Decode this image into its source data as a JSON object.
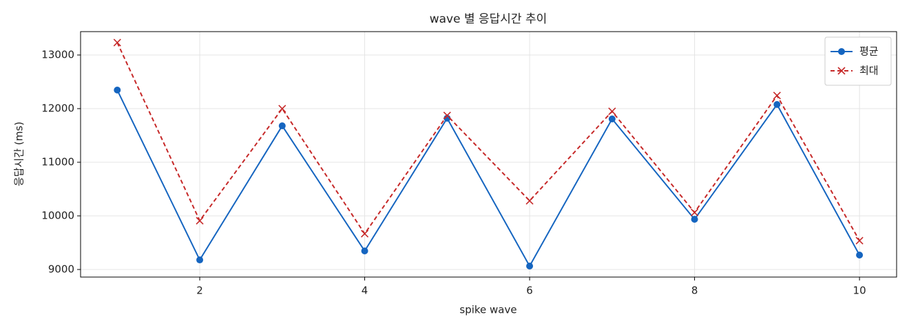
{
  "chart_data": {
    "type": "line",
    "title": "wave 별 응답시간 추이",
    "x_label": "spike wave",
    "y_label": "응답시간 (ms)",
    "x": [
      1,
      2,
      3,
      4,
      5,
      6,
      7,
      8,
      9,
      10
    ],
    "series": [
      {
        "name": "평균",
        "color": "#1565c0",
        "marker": "circle",
        "dashed": false,
        "values": [
          12346,
          9179,
          11679,
          9346,
          11821,
          9064,
          11808,
          9936,
          12077,
          9269
        ]
      },
      {
        "name": "최대",
        "color": "#c62828",
        "marker": "x",
        "dashed": true,
        "values": [
          13231,
          9910,
          12000,
          9667,
          11872,
          10282,
          11949,
          10064,
          12244,
          9538
        ]
      }
    ],
    "xlim": [
      0.555,
      10.45
    ],
    "xticks": [
      2,
      4,
      6,
      8,
      10
    ],
    "ylim": [
      8859,
      13436
    ],
    "yticks": [
      9000,
      10000,
      11000,
      12000,
      13000
    ],
    "grid": true,
    "legend": "upper right"
  }
}
